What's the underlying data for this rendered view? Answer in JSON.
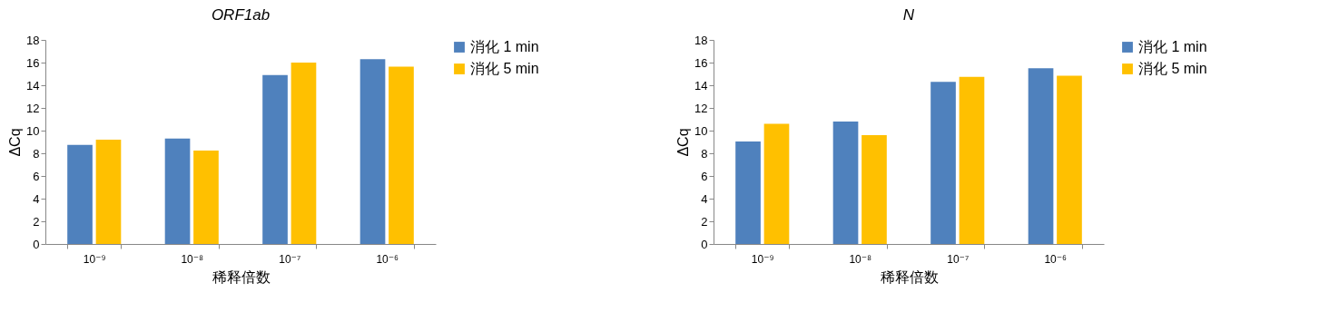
{
  "chart_data": [
    {
      "type": "bar",
      "title": "ORF1ab",
      "xlabel": "稀释倍数",
      "ylabel": "ΔCq",
      "categories": [
        "10⁻⁹",
        "10⁻⁸",
        "10⁻⁷",
        "10⁻⁶"
      ],
      "series": [
        {
          "name": "消化 1 min",
          "color": "#4f81bd",
          "values": [
            8.75,
            9.3,
            14.9,
            16.3
          ]
        },
        {
          "name": "消化 5 min",
          "color": "#ffc000",
          "values": [
            9.2,
            8.25,
            16.0,
            15.65
          ]
        }
      ],
      "ylim": [
        0,
        18
      ],
      "yticks": [
        0,
        2,
        4,
        6,
        8,
        10,
        12,
        14,
        16,
        18
      ],
      "grid": false,
      "legend": "right"
    },
    {
      "type": "bar",
      "title": "N",
      "xlabel": "稀释倍数",
      "ylabel": "ΔCq",
      "categories": [
        "10⁻⁹",
        "10⁻⁸",
        "10⁻⁷",
        "10⁻⁶"
      ],
      "series": [
        {
          "name": "消化 1 min",
          "color": "#4f81bd",
          "values": [
            9.05,
            10.8,
            14.3,
            15.5
          ]
        },
        {
          "name": "消化 5 min",
          "color": "#ffc000",
          "values": [
            10.6,
            9.6,
            14.75,
            14.85
          ]
        }
      ],
      "ylim": [
        0,
        18
      ],
      "yticks": [
        0,
        2,
        4,
        6,
        8,
        10,
        12,
        14,
        16,
        18
      ],
      "grid": false,
      "legend": "right"
    }
  ]
}
